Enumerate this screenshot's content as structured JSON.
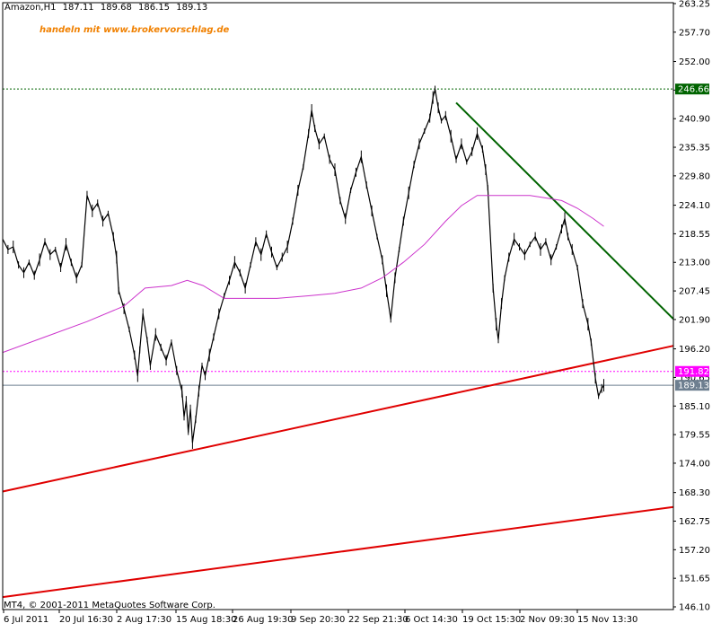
{
  "header": {
    "symbol": "Amazon,H1",
    "open": "187.11",
    "high": "189.68",
    "low": "186.15",
    "close": "189.13"
  },
  "watermark": "handeln mit www.brokervorschlag.de",
  "copyright": "MT4, © 2001-2011 MetaQuotes Software Corp.",
  "colors": {
    "background": "#ffffff",
    "price": "#000000",
    "moving_average": "#cc33cc",
    "support_line": "#e00000",
    "resistance_line": "#006400",
    "level_green": "#006400",
    "level_magenta": "#ff00ff",
    "last_price": "#6e7f90"
  },
  "chart_data": {
    "type": "line",
    "subtype": "ohlc-price",
    "title": "Amazon,H1",
    "ylim": [
      146.1,
      263.25
    ],
    "y_ticks": [
      "263.25",
      "257.70",
      "252.00",
      "246.45",
      "240.90",
      "235.35",
      "229.80",
      "224.10",
      "218.55",
      "213.00",
      "207.45",
      "201.90",
      "196.20",
      "190.65",
      "185.10",
      "179.55",
      "174.00",
      "168.30",
      "162.75",
      "157.20",
      "151.65",
      "146.10"
    ],
    "x_ticks": [
      "6 Jul 2011",
      "20 Jul 16:30",
      "2 Aug 17:30",
      "15 Aug 18:30",
      "26 Aug 19:30",
      "9 Sep 20:30",
      "22 Sep 21:30",
      "6 Oct 14:30",
      "19 Oct 15:30",
      "2 Nov 09:30",
      "15 Nov 13:30"
    ],
    "price_labels": [
      {
        "label": "246.66",
        "value": 246.66,
        "color": "#006400"
      },
      {
        "label": "191.82",
        "value": 191.82,
        "color": "#ff00ff"
      },
      {
        "label": "189.13",
        "value": 189.13,
        "color": "#6e7f90"
      }
    ],
    "series": [
      {
        "kind": "price",
        "points": [
          [
            0.0,
            217.5
          ],
          [
            0.5,
            215.5
          ],
          [
            1.0,
            216.0
          ],
          [
            1.5,
            212.5
          ],
          [
            2.0,
            211.0
          ],
          [
            2.5,
            213.0
          ],
          [
            3.0,
            210.5
          ],
          [
            3.5,
            213.5
          ],
          [
            4.0,
            217.0
          ],
          [
            4.5,
            214.5
          ],
          [
            5.0,
            215.5
          ],
          [
            5.5,
            212.0
          ],
          [
            6.0,
            216.5
          ],
          [
            6.5,
            213.0
          ],
          [
            7.0,
            210.0
          ],
          [
            7.5,
            212.5
          ],
          [
            8.0,
            226.0
          ],
          [
            8.5,
            223.0
          ],
          [
            9.0,
            224.5
          ],
          [
            9.5,
            221.0
          ],
          [
            10.0,
            222.5
          ],
          [
            10.5,
            218.0
          ],
          [
            10.8,
            214.0
          ],
          [
            11.0,
            207.5
          ],
          [
            11.5,
            204.0
          ],
          [
            12.0,
            200.0
          ],
          [
            12.5,
            195.0
          ],
          [
            12.8,
            191.0
          ],
          [
            13.0,
            196.0
          ],
          [
            13.3,
            203.0
          ],
          [
            13.7,
            198.0
          ],
          [
            14.0,
            193.0
          ],
          [
            14.5,
            199.0
          ],
          [
            15.0,
            196.5
          ],
          [
            15.5,
            194.0
          ],
          [
            16.0,
            197.5
          ],
          [
            16.5,
            192.0
          ],
          [
            17.0,
            188.0
          ],
          [
            17.2,
            183.0
          ],
          [
            17.4,
            186.0
          ],
          [
            17.6,
            180.0
          ],
          [
            17.8,
            184.5
          ],
          [
            18.0,
            178.0
          ],
          [
            18.3,
            182.5
          ],
          [
            18.6,
            188.0
          ],
          [
            18.9,
            193.0
          ],
          [
            19.2,
            191.0
          ],
          [
            19.6,
            195.0
          ],
          [
            20.0,
            198.5
          ],
          [
            20.5,
            203.0
          ],
          [
            21.0,
            206.5
          ],
          [
            21.5,
            209.5
          ],
          [
            22.0,
            213.0
          ],
          [
            22.5,
            211.0
          ],
          [
            23.0,
            208.0
          ],
          [
            23.5,
            212.5
          ],
          [
            24.0,
            217.0
          ],
          [
            24.5,
            214.5
          ],
          [
            25.0,
            218.5
          ],
          [
            25.5,
            215.0
          ],
          [
            26.0,
            212.0
          ],
          [
            26.5,
            214.0
          ],
          [
            27.0,
            216.0
          ],
          [
            27.5,
            221.0
          ],
          [
            28.0,
            227.0
          ],
          [
            28.5,
            231.5
          ],
          [
            29.0,
            238.0
          ],
          [
            29.3,
            242.5
          ],
          [
            29.6,
            239.0
          ],
          [
            30.0,
            236.0
          ],
          [
            30.5,
            237.5
          ],
          [
            31.0,
            233.0
          ],
          [
            31.5,
            231.0
          ],
          [
            32.0,
            225.0
          ],
          [
            32.5,
            221.5
          ],
          [
            33.0,
            227.0
          ],
          [
            33.5,
            230.5
          ],
          [
            34.0,
            233.5
          ],
          [
            34.5,
            228.0
          ],
          [
            35.0,
            223.0
          ],
          [
            35.5,
            218.0
          ],
          [
            36.0,
            213.5
          ],
          [
            36.4,
            207.5
          ],
          [
            36.8,
            202.0
          ],
          [
            37.2,
            210.0
          ],
          [
            37.6,
            215.5
          ],
          [
            38.0,
            221.0
          ],
          [
            38.5,
            226.5
          ],
          [
            39.0,
            232.0
          ],
          [
            39.5,
            236.0
          ],
          [
            40.0,
            238.5
          ],
          [
            40.5,
            241.0
          ],
          [
            40.8,
            245.0
          ],
          [
            41.0,
            246.6
          ],
          [
            41.3,
            243.0
          ],
          [
            41.6,
            240.5
          ],
          [
            42.0,
            241.5
          ],
          [
            42.5,
            237.5
          ],
          [
            43.0,
            233.0
          ],
          [
            43.5,
            236.0
          ],
          [
            44.0,
            232.5
          ],
          [
            44.5,
            234.5
          ],
          [
            45.0,
            238.0
          ],
          [
            45.5,
            235.0
          ],
          [
            45.8,
            231.0
          ],
          [
            46.0,
            227.5
          ],
          [
            46.5,
            208.0
          ],
          [
            46.8,
            201.0
          ],
          [
            47.0,
            198.0
          ],
          [
            47.3,
            205.0
          ],
          [
            47.6,
            210.0
          ],
          [
            48.0,
            214.0
          ],
          [
            48.5,
            217.5
          ],
          [
            49.0,
            216.0
          ],
          [
            49.5,
            214.5
          ],
          [
            50.0,
            216.5
          ],
          [
            50.5,
            218.0
          ],
          [
            51.0,
            215.5
          ],
          [
            51.5,
            217.0
          ],
          [
            52.0,
            213.5
          ],
          [
            52.5,
            216.0
          ],
          [
            53.0,
            219.5
          ],
          [
            53.3,
            221.5
          ],
          [
            53.6,
            218.0
          ],
          [
            54.0,
            215.5
          ],
          [
            54.5,
            212.0
          ],
          [
            55.0,
            205.0
          ],
          [
            55.5,
            201.0
          ],
          [
            55.8,
            197.5
          ],
          [
            56.2,
            190.5
          ],
          [
            56.5,
            187.0
          ],
          [
            56.8,
            188.5
          ],
          [
            57.0,
            189.13
          ]
        ]
      },
      {
        "kind": "moving_average",
        "points": [
          [
            0.0,
            195.5
          ],
          [
            4.0,
            198.5
          ],
          [
            8.0,
            201.5
          ],
          [
            11.5,
            204.5
          ],
          [
            13.5,
            208.0
          ],
          [
            16.0,
            208.5
          ],
          [
            17.5,
            209.5
          ],
          [
            19.0,
            208.5
          ],
          [
            21.0,
            206.0
          ],
          [
            23.0,
            206.0
          ],
          [
            26.0,
            206.0
          ],
          [
            29.0,
            206.5
          ],
          [
            31.5,
            207.0
          ],
          [
            34.0,
            208.0
          ],
          [
            36.0,
            210.0
          ],
          [
            38.0,
            213.0
          ],
          [
            40.0,
            216.5
          ],
          [
            42.0,
            221.0
          ],
          [
            43.5,
            224.0
          ],
          [
            45.0,
            226.0
          ],
          [
            46.5,
            226.0
          ],
          [
            48.5,
            226.0
          ],
          [
            50.0,
            226.0
          ],
          [
            51.5,
            225.5
          ],
          [
            53.0,
            225.0
          ],
          [
            54.5,
            223.5
          ],
          [
            56.0,
            221.5
          ],
          [
            57.0,
            220.0
          ]
        ]
      }
    ],
    "trendlines": [
      {
        "name": "lower support",
        "color": "#e00000",
        "x": [
          0.0,
          63.6
        ],
        "y": [
          148.0,
          165.5
        ]
      },
      {
        "name": "support",
        "color": "#e00000",
        "x": [
          0.0,
          63.6
        ],
        "y": [
          168.5,
          196.8
        ]
      },
      {
        "name": "resistance",
        "color": "#006400",
        "x": [
          43.0,
          63.6
        ],
        "y": [
          244.0,
          202.0
        ]
      }
    ],
    "horizontal_levels": [
      {
        "value": 246.66,
        "color": "#006400",
        "style": "dotted"
      },
      {
        "value": 191.82,
        "color": "#ff00ff",
        "style": "dotted"
      },
      {
        "value": 189.13,
        "color": "#6e7f90",
        "style": "solid"
      }
    ],
    "grid": false,
    "legend": "none"
  }
}
